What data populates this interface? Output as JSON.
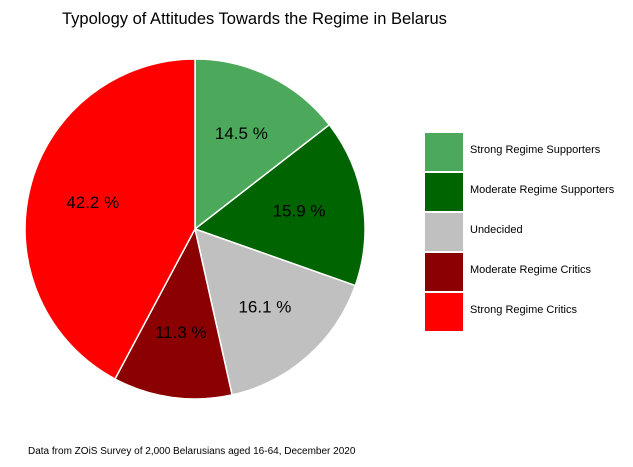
{
  "chart_data": {
    "type": "pie",
    "title": "Typology of Attitudes Towards the Regime in Belarus",
    "slices": [
      {
        "label": "Strong Regime Supporters",
        "value": 14.5,
        "value_label": "14.5 %",
        "color": "#4ca85a"
      },
      {
        "label": "Moderate Regime Supporters",
        "value": 15.9,
        "value_label": "15.9 %",
        "color": "#006400"
      },
      {
        "label": "Undecided",
        "value": 16.1,
        "value_label": "16.1 %",
        "color": "#c0c0c0"
      },
      {
        "label": "Moderate Regime Critics",
        "value": 11.3,
        "value_label": "11.3 %",
        "color": "#8b0000"
      },
      {
        "label": "Strong Regime Critics",
        "value": 42.2,
        "value_label": "42.2 %",
        "color": "#ff0000"
      }
    ],
    "start_angle": "12 o'clock",
    "direction": "clockwise",
    "legend_position": "right"
  },
  "footnote": "Data from ZOiS Survey of 2,000 Belarusians aged 16-64, December 2020"
}
